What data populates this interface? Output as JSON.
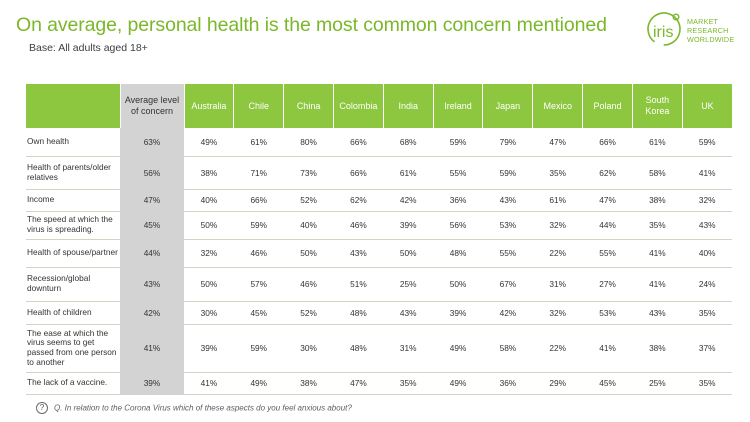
{
  "title": "On average, personal health is the most common concern mentioned",
  "subtitle": "Base: All adults aged 18+",
  "logo": {
    "mark": "iris",
    "lines": [
      "MARKET",
      "RESEARCH",
      "WORLDWIDE"
    ],
    "color": "#7ab829"
  },
  "question": {
    "icon": "?",
    "text": "Q. In relation to the Corona Virus which of these aspects do you feel anxious about?"
  },
  "colors": {
    "header_green": "#8dc63f",
    "title_green": "#7ab829",
    "average_grey": "#d3d3d3"
  },
  "chart_data": {
    "type": "table",
    "header": {
      "average": "Average level of concern",
      "countries": [
        "Australia",
        "Chile",
        "China",
        "Colombia",
        "India",
        "Ireland",
        "Japan",
        "Mexico",
        "Poland",
        "South Korea",
        "UK"
      ]
    },
    "rows": [
      {
        "label": "Own health",
        "average": "63%",
        "values": [
          "49%",
          "61%",
          "80%",
          "66%",
          "68%",
          "59%",
          "79%",
          "47%",
          "66%",
          "61%",
          "59%"
        ]
      },
      {
        "label": "Health of parents/older relatives",
        "average": "56%",
        "values": [
          "38%",
          "71%",
          "73%",
          "66%",
          "61%",
          "55%",
          "59%",
          "35%",
          "62%",
          "58%",
          "41%"
        ]
      },
      {
        "label": "Income",
        "average": "47%",
        "values": [
          "40%",
          "66%",
          "52%",
          "62%",
          "42%",
          "36%",
          "43%",
          "61%",
          "47%",
          "38%",
          "32%"
        ]
      },
      {
        "label": "The speed at which the virus is spreading.",
        "average": "45%",
        "values": [
          "50%",
          "59%",
          "40%",
          "46%",
          "39%",
          "56%",
          "53%",
          "32%",
          "44%",
          "35%",
          "43%"
        ]
      },
      {
        "label": "Health of spouse/partner",
        "average": "44%",
        "values": [
          "32%",
          "46%",
          "50%",
          "43%",
          "50%",
          "48%",
          "55%",
          "22%",
          "55%",
          "41%",
          "40%"
        ]
      },
      {
        "label": "Recession/global downturn",
        "average": "43%",
        "values": [
          "50%",
          "57%",
          "46%",
          "51%",
          "25%",
          "50%",
          "67%",
          "31%",
          "27%",
          "41%",
          "24%"
        ]
      },
      {
        "label": "Health of children",
        "average": "42%",
        "values": [
          "30%",
          "45%",
          "52%",
          "48%",
          "43%",
          "39%",
          "42%",
          "32%",
          "53%",
          "43%",
          "35%"
        ]
      },
      {
        "label": "The ease at which the virus seems to get passed from one person to another",
        "average": "41%",
        "values": [
          "39%",
          "59%",
          "30%",
          "48%",
          "31%",
          "49%",
          "58%",
          "22%",
          "41%",
          "38%",
          "37%"
        ]
      },
      {
        "label": "The lack of a vaccine.",
        "average": "39%",
        "values": [
          "41%",
          "49%",
          "38%",
          "47%",
          "35%",
          "49%",
          "36%",
          "29%",
          "45%",
          "25%",
          "35%"
        ]
      }
    ]
  }
}
